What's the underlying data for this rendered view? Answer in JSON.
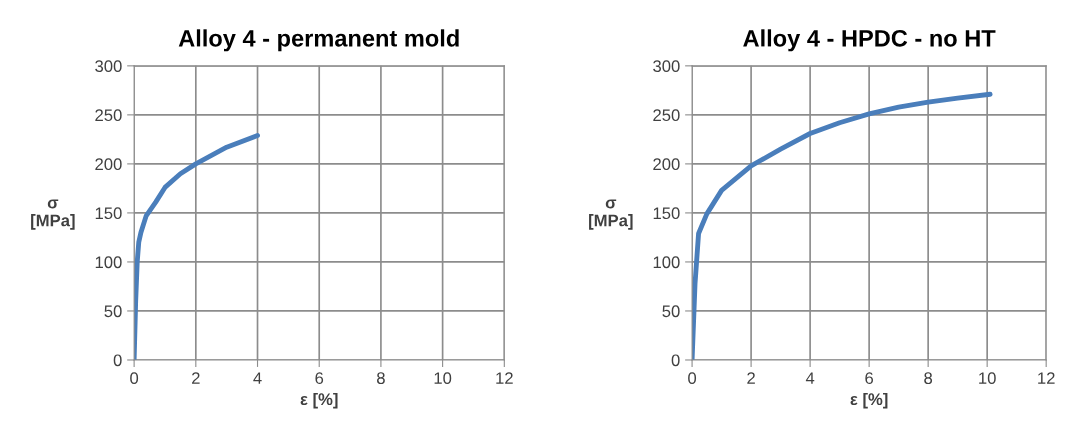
{
  "chart_data": [
    {
      "type": "line",
      "title": "Alloy 4 - permanent mold",
      "xlabel": "ε [%]",
      "ylabel": "σ\n[MPa]",
      "xlim": [
        0,
        12
      ],
      "xticks": [
        0,
        2,
        4,
        6,
        8,
        10,
        12
      ],
      "ylim": [
        0,
        300
      ],
      "yticks": [
        0,
        50,
        100,
        150,
        200,
        250,
        300
      ],
      "grid": true,
      "legend": false,
      "series": [
        {
          "color": "#4a7ebb",
          "x": [
            0,
            0.05,
            0.1,
            0.15,
            0.22,
            0.39,
            0.7,
            1,
            1.5,
            2,
            3,
            4
          ],
          "values": [
            0,
            60,
            100,
            120,
            130,
            147,
            161,
            176,
            190,
            200,
            217,
            229
          ]
        }
      ]
    },
    {
      "type": "line",
      "title": "Alloy 4 - HPDC - no HT",
      "xlabel": "ε [%]",
      "ylabel": "σ\n[MPa]",
      "xlim": [
        0,
        12
      ],
      "xticks": [
        0,
        2,
        4,
        6,
        8,
        10,
        12
      ],
      "ylim": [
        0,
        300
      ],
      "yticks": [
        0,
        50,
        100,
        150,
        200,
        250,
        300
      ],
      "grid": true,
      "legend": false,
      "series": [
        {
          "color": "#4a7ebb",
          "x": [
            0,
            0.1,
            0.22,
            0.5,
            1,
            2,
            3,
            4,
            5,
            6,
            7,
            8,
            9,
            10.1
          ],
          "values": [
            0,
            78,
            129,
            149,
            173,
            198,
            215,
            231,
            242,
            251,
            258,
            263,
            267,
            271
          ]
        }
      ]
    }
  ]
}
